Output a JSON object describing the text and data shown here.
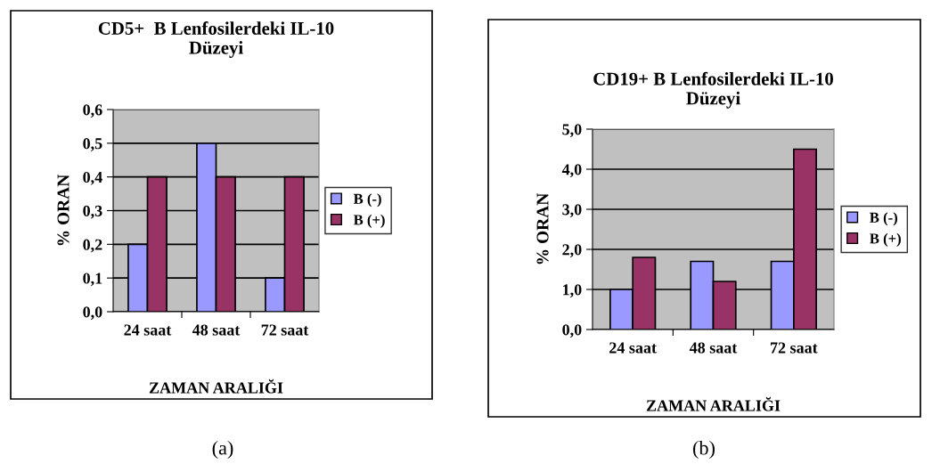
{
  "chart_data": [
    {
      "type": "bar",
      "title": "CD5+  B Lenfosilerdeki IL-10\nDüzeyi",
      "xlabel": "ZAMAN ARALIĞI",
      "ylabel": "% ORAN",
      "categories": [
        "24 saat",
        "48 saat",
        "72 saat"
      ],
      "series": [
        {
          "name": "B (-)",
          "color": "#9999ff",
          "values": [
            0.2,
            0.5,
            0.1
          ]
        },
        {
          "name": "B (+)",
          "color": "#993366",
          "values": [
            0.4,
            0.4,
            0.4
          ]
        }
      ],
      "ylim": [
        0,
        0.6
      ],
      "yticks": [
        {
          "value": 0,
          "label": "0,0"
        },
        {
          "value": 0.1,
          "label": "0,1"
        },
        {
          "value": 0.2,
          "label": "0,2"
        },
        {
          "value": 0.3,
          "label": "0,3"
        },
        {
          "value": 0.4,
          "label": "0,4"
        },
        {
          "value": 0.5,
          "label": "0,5"
        },
        {
          "value": 0.6,
          "label": "0,6"
        }
      ],
      "grid": "y",
      "legend": "right",
      "annotations": [
        "(a)"
      ]
    },
    {
      "type": "bar",
      "title": "CD19+ B Lenfosilerdeki IL-10\nDüzeyi",
      "xlabel": "ZAMAN ARALIĞI",
      "ylabel": "% ORAN",
      "categories": [
        "24 saat",
        "48 saat",
        "72 saat"
      ],
      "series": [
        {
          "name": "B (-)",
          "color": "#9999ff",
          "values": [
            1.0,
            1.7,
            1.7
          ]
        },
        {
          "name": "B (+)",
          "color": "#993366",
          "values": [
            1.8,
            1.2,
            4.5
          ]
        }
      ],
      "ylim": [
        0,
        5
      ],
      "yticks": [
        {
          "value": 0,
          "label": "0,0"
        },
        {
          "value": 1,
          "label": "1,0"
        },
        {
          "value": 2,
          "label": "2,0"
        },
        {
          "value": 3,
          "label": "3,0"
        },
        {
          "value": 4,
          "label": "4,0"
        },
        {
          "value": 5,
          "label": "5,0"
        }
      ],
      "grid": "y",
      "legend": "right",
      "annotations": [
        "(b)"
      ]
    }
  ]
}
